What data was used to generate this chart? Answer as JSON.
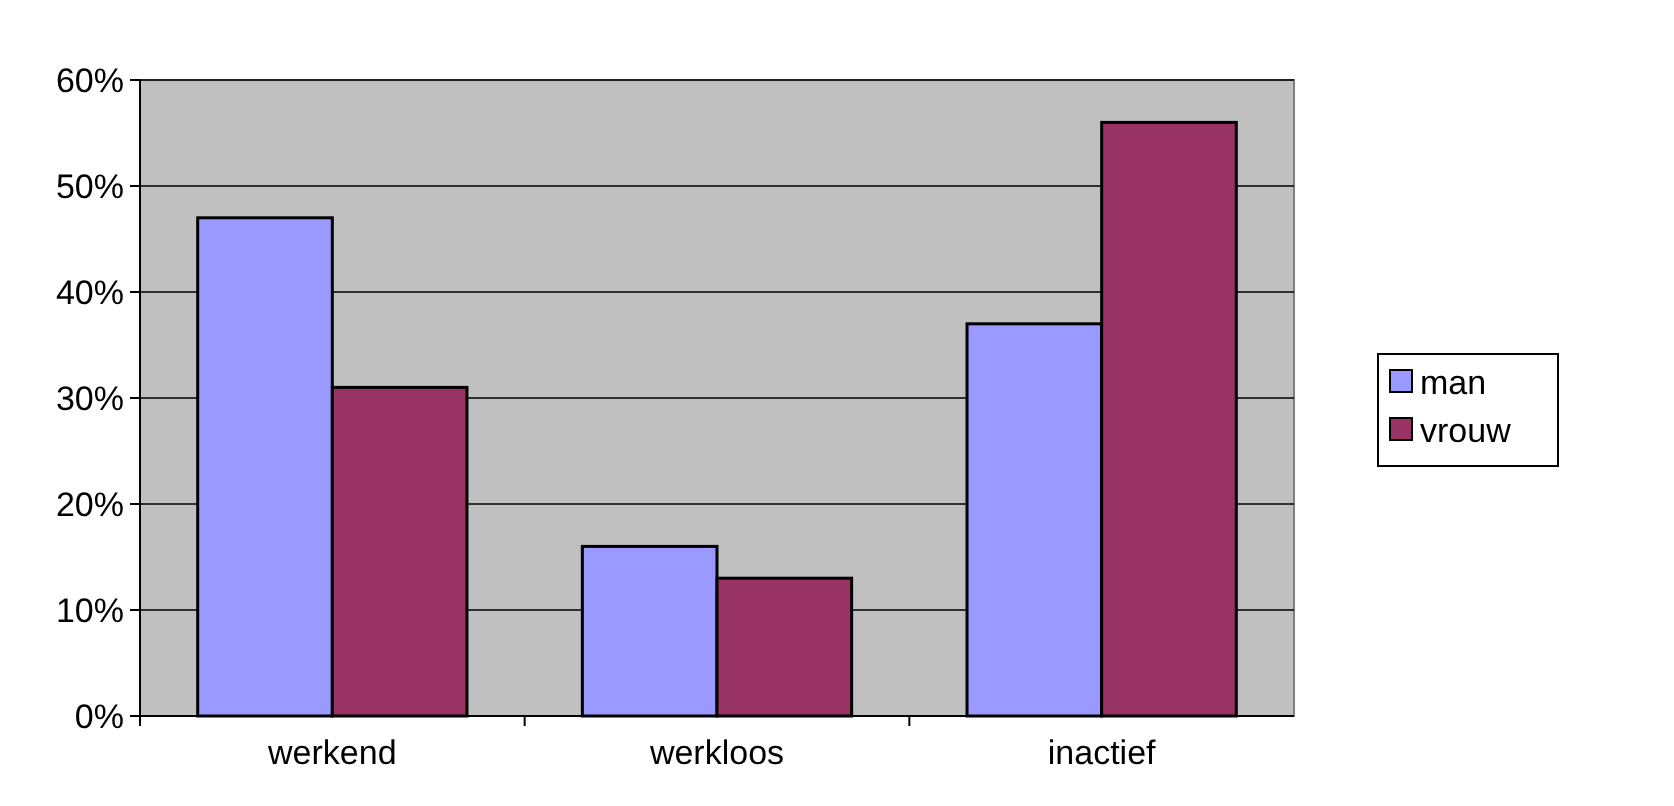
{
  "chart_data": {
    "type": "bar",
    "categories": [
      "werkend",
      "werkloos",
      "inactief"
    ],
    "series": [
      {
        "name": "man",
        "color": "#9999ff",
        "values": [
          47,
          16,
          37
        ]
      },
      {
        "name": "vrouw",
        "color": "#993366",
        "values": [
          31,
          13,
          56
        ]
      }
    ],
    "ylim": [
      0,
      60
    ],
    "yticks": [
      {
        "value": 0,
        "label": "0%"
      },
      {
        "value": 10,
        "label": "10%"
      },
      {
        "value": 20,
        "label": "20%"
      },
      {
        "value": 30,
        "label": "30%"
      },
      {
        "value": 40,
        "label": "40%"
      },
      {
        "value": 50,
        "label": "50%"
      },
      {
        "value": 60,
        "label": "60%"
      }
    ],
    "grid": "y",
    "legend": "right"
  }
}
